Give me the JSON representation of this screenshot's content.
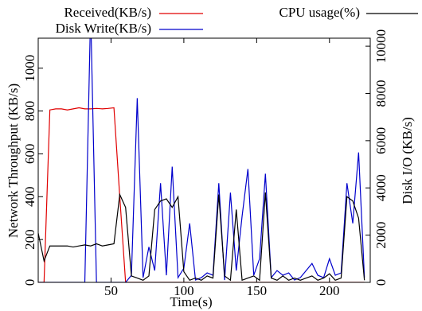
{
  "chart_data": {
    "type": "line",
    "xlabel": "Time(s)",
    "ylabel": "Network Throughput (KB/s)",
    "y2label": "Disk I/O (KB/s)",
    "x": [
      0,
      4,
      8,
      12,
      16,
      20,
      24,
      28,
      32,
      36,
      40,
      44,
      48,
      52,
      56,
      60,
      64,
      68,
      72,
      76,
      80,
      84,
      88,
      92,
      96,
      100,
      104,
      108,
      112,
      116,
      120,
      124,
      128,
      132,
      136,
      140,
      144,
      148,
      152,
      156,
      160,
      164,
      168,
      172,
      176,
      180,
      184,
      188,
      192,
      196,
      200,
      204,
      208,
      212,
      216,
      220,
      224
    ],
    "series": [
      {
        "name": "Received(KB/s)",
        "color": "#e00000",
        "values": [
          0,
          0,
          805,
          810,
          810,
          805,
          810,
          815,
          810,
          810,
          812,
          810,
          812,
          815,
          400,
          0,
          0,
          0,
          0,
          0,
          0,
          0,
          0,
          0,
          0,
          0,
          0,
          0,
          0,
          0,
          0,
          0,
          0,
          0,
          0,
          0,
          0,
          0,
          0,
          0,
          0,
          0,
          0,
          0,
          0,
          0,
          0,
          0,
          0,
          0,
          0,
          0,
          0,
          0,
          0,
          0,
          0
        ]
      },
      {
        "name": "Disk Write(KB/s)",
        "color": "#0000cc",
        "axis": "y2",
        "values": [
          0,
          0,
          0,
          0,
          0,
          0,
          0,
          0,
          0,
          11500,
          0,
          0,
          0,
          0,
          0,
          0,
          300,
          7800,
          200,
          1500,
          500,
          4200,
          300,
          4900,
          200,
          600,
          2500,
          100,
          200,
          400,
          300,
          4200,
          100,
          3800,
          500,
          2800,
          4800,
          300,
          1000,
          4600,
          200,
          500,
          300,
          400,
          100,
          200,
          500,
          800,
          300,
          200,
          1000,
          300,
          400,
          4200,
          2500,
          5500,
          200
        ]
      },
      {
        "name": "CPU usage(%)",
        "color": "#000000",
        "values": [
          230,
          100,
          170,
          170,
          170,
          170,
          165,
          170,
          175,
          170,
          180,
          170,
          175,
          180,
          410,
          350,
          30,
          20,
          10,
          30,
          340,
          380,
          390,
          350,
          400,
          50,
          10,
          20,
          10,
          30,
          20,
          410,
          30,
          10,
          340,
          10,
          20,
          30,
          10,
          420,
          20,
          10,
          30,
          10,
          20,
          10,
          20,
          30,
          10,
          20,
          40,
          10,
          20,
          400,
          380,
          300,
          10
        ]
      }
    ],
    "xlim": [
      0,
      228
    ],
    "xticks": [
      50,
      100,
      150,
      200
    ],
    "ylim": [
      0,
      1140
    ],
    "yticks": [
      0,
      200,
      400,
      600,
      800,
      1000
    ],
    "y2lim": [
      0,
      10340
    ],
    "y2ticks": [
      0,
      2000,
      4000,
      6000,
      8000,
      10000
    ]
  }
}
